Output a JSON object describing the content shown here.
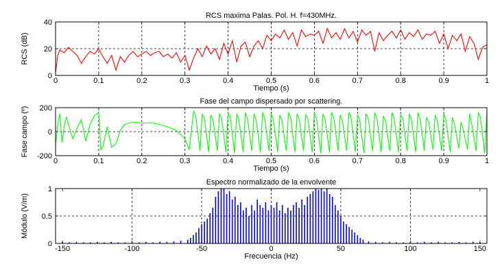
{
  "chart_data": [
    {
      "type": "line",
      "title": "RCS maxima Palas. Pol. H. f=430MHz.",
      "xlabel": "Tiempo (s)",
      "ylabel": "RCS (dB)",
      "xlim": [
        0,
        1
      ],
      "ylim": [
        0,
        40
      ],
      "xticks": [
        0,
        0.1,
        0.2,
        0.3,
        0.4,
        0.5,
        0.6,
        0.7,
        0.8,
        0.9,
        1
      ],
      "xtick_labels": [
        "0",
        "0.1",
        "0.2",
        "0.3",
        "0.4",
        "0.5",
        "0.6",
        "0.7",
        "0.8",
        "0.9",
        "1"
      ],
      "yticks": [
        0,
        20,
        40
      ],
      "ytick_labels": [
        "0",
        "20",
        "40"
      ],
      "grid": true,
      "color": "#ff0000",
      "series": [
        {
          "x": [
            0,
            0.005,
            0.01,
            0.02,
            0.03,
            0.04,
            0.05,
            0.06,
            0.07,
            0.08,
            0.09,
            0.1,
            0.11,
            0.12,
            0.13,
            0.14,
            0.15,
            0.16,
            0.17,
            0.18,
            0.19,
            0.2,
            0.21,
            0.22,
            0.23,
            0.24,
            0.25,
            0.26,
            0.27,
            0.28,
            0.29,
            0.3,
            0.31,
            0.32,
            0.33,
            0.34,
            0.35,
            0.36,
            0.37,
            0.38,
            0.39,
            0.4,
            0.41,
            0.42,
            0.43,
            0.44,
            0.45,
            0.46,
            0.47,
            0.48,
            0.49,
            0.5,
            0.51,
            0.52,
            0.53,
            0.54,
            0.55,
            0.56,
            0.57,
            0.58,
            0.59,
            0.6,
            0.61,
            0.62,
            0.63,
            0.64,
            0.65,
            0.66,
            0.67,
            0.68,
            0.69,
            0.7,
            0.71,
            0.72,
            0.73,
            0.74,
            0.75,
            0.76,
            0.77,
            0.78,
            0.79,
            0.8,
            0.81,
            0.82,
            0.83,
            0.84,
            0.85,
            0.86,
            0.87,
            0.88,
            0.89,
            0.9,
            0.91,
            0.92,
            0.93,
            0.94,
            0.95,
            0.96,
            0.97,
            0.98,
            0.99,
            1
          ],
          "y": [
            2,
            15,
            19,
            17,
            21,
            18,
            15,
            9,
            14,
            18,
            16,
            20,
            14,
            9,
            15,
            4,
            14,
            10,
            15,
            18,
            14,
            16,
            18,
            15,
            17,
            18,
            14,
            16,
            13,
            17,
            10,
            15,
            4,
            13,
            20,
            14,
            22,
            16,
            20,
            12,
            24,
            16,
            26,
            10,
            22,
            25,
            14,
            22,
            26,
            20,
            30,
            26,
            31,
            28,
            34,
            27,
            32,
            22,
            34,
            29,
            31,
            30,
            33,
            24,
            35,
            28,
            32,
            27,
            35,
            28,
            33,
            25,
            34,
            30,
            33,
            18,
            32,
            26,
            30,
            33,
            28,
            34,
            27,
            32,
            29,
            34,
            27,
            31,
            30,
            33,
            24,
            31,
            20,
            30,
            26,
            31,
            18,
            29,
            24,
            12,
            21,
            23
          ]
        }
      ]
    },
    {
      "type": "line",
      "title": "Fase del campo dispersado por scattering.",
      "xlabel": "Tiempo (s)",
      "ylabel": "Fase campo (º)",
      "xlim": [
        0,
        1
      ],
      "ylim": [
        -200,
        200
      ],
      "xticks": [
        0,
        0.1,
        0.2,
        0.3,
        0.4,
        0.5,
        0.6,
        0.7,
        0.8,
        0.9,
        1
      ],
      "xtick_labels": [
        "0",
        "0.1",
        "0.2",
        "0.3",
        "0.4",
        "0.5",
        "0.6",
        "0.7",
        "0.8",
        "0.9",
        "1"
      ],
      "yticks": [
        -200,
        0,
        200
      ],
      "ytick_labels": [
        "-200",
        "0",
        "200"
      ],
      "grid": true,
      "color": "#00ff00",
      "series": [
        {
          "x": [
            0,
            0.005,
            0.01,
            0.015,
            0.02,
            0.025,
            0.04,
            0.05,
            0.06,
            0.07,
            0.08,
            0.09,
            0.1,
            0.105,
            0.11,
            0.12,
            0.13,
            0.14,
            0.15,
            0.16,
            0.18,
            0.2,
            0.22,
            0.24,
            0.26,
            0.28,
            0.3,
            0.31,
            0.32,
            0.325,
            0.335,
            0.34,
            0.345,
            0.355,
            0.36,
            0.365,
            0.375,
            0.38,
            0.385,
            0.395,
            0.4,
            0.405,
            0.415,
            0.42,
            0.425,
            0.435,
            0.44,
            0.445,
            0.455,
            0.46,
            0.465,
            0.475,
            0.48,
            0.485,
            0.495,
            0.5,
            0.505,
            0.515,
            0.52,
            0.525,
            0.535,
            0.54,
            0.545,
            0.555,
            0.56,
            0.565,
            0.575,
            0.58,
            0.585,
            0.595,
            0.6,
            0.605,
            0.615,
            0.62,
            0.625,
            0.635,
            0.64,
            0.645,
            0.655,
            0.66,
            0.665,
            0.675,
            0.68,
            0.685,
            0.695,
            0.7,
            0.705,
            0.715,
            0.72,
            0.725,
            0.735,
            0.74,
            0.745,
            0.755,
            0.76,
            0.765,
            0.775,
            0.78,
            0.785,
            0.795,
            0.8,
            0.805,
            0.815,
            0.82,
            0.825,
            0.835,
            0.84,
            0.845,
            0.855,
            0.86,
            0.865,
            0.875,
            0.88,
            0.885,
            0.895,
            0.9,
            0.905,
            0.915,
            0.92,
            0.925,
            0.935,
            0.94,
            0.945,
            0.955,
            0.96,
            0.965,
            0.975,
            0.98,
            0.985,
            0.995,
            1
          ],
          "y": [
            -120,
            60,
            150,
            -90,
            40,
            120,
            -60,
            30,
            100,
            -80,
            60,
            130,
            160,
            -150,
            -120,
            40,
            -130,
            -100,
            10,
            60,
            80,
            70,
            75,
            60,
            40,
            10,
            -60,
            -150,
            170,
            130,
            -160,
            150,
            110,
            -170,
            140,
            100,
            -160,
            150,
            110,
            -170,
            160,
            120,
            -180,
            150,
            100,
            -170,
            160,
            110,
            -160,
            150,
            100,
            -170,
            160,
            110,
            -160,
            150,
            100,
            -170,
            140,
            90,
            -160,
            160,
            120,
            -170,
            150,
            100,
            -160,
            140,
            110,
            -170,
            160,
            110,
            -180,
            150,
            100,
            -170,
            160,
            120,
            -160,
            140,
            90,
            -160,
            160,
            120,
            -170,
            140,
            100,
            -180,
            150,
            110,
            -160,
            160,
            110,
            -170,
            130,
            90,
            -160,
            160,
            110,
            -170,
            140,
            110,
            -160,
            150,
            100,
            -170,
            160,
            110,
            -160,
            120,
            80,
            -150,
            140,
            90,
            -160,
            150,
            100,
            -170,
            120,
            60,
            -140,
            80,
            20,
            -150,
            150,
            60,
            -160,
            160,
            120,
            -180,
            160
          ]
        }
      ]
    },
    {
      "type": "bar",
      "title": "Espectro normalizado de la envolvente",
      "xlabel": "Frecuencia (Hz)",
      "ylabel": "Módulo (V/m)",
      "xlim": [
        -155,
        155
      ],
      "ylim": [
        0,
        1
      ],
      "xticks": [
        -150,
        -100,
        -50,
        0,
        50,
        100,
        150
      ],
      "xtick_labels": [
        "-150",
        "-100",
        "-50",
        "0",
        "50",
        "100",
        "150"
      ],
      "yticks": [
        0,
        0.5,
        1
      ],
      "ytick_labels": [
        "0",
        "0.5",
        "1"
      ],
      "grid": true,
      "color": "#0000ff",
      "series": [
        {
          "x": [
            -150,
            -145,
            -140,
            -135,
            -130,
            -125,
            -120,
            -115,
            -110,
            -105,
            -100,
            -95,
            -90,
            -85,
            -80,
            -75,
            -70,
            -65,
            -60,
            -58,
            -56,
            -54,
            -52,
            -50,
            -48,
            -46,
            -44,
            -42,
            -40,
            -38,
            -36,
            -34,
            -32,
            -30,
            -28,
            -26,
            -24,
            -22,
            -20,
            -18,
            -16,
            -14,
            -12,
            -10,
            -8,
            -6,
            -4,
            -2,
            0,
            2,
            4,
            6,
            8,
            10,
            12,
            14,
            16,
            18,
            20,
            22,
            24,
            26,
            28,
            30,
            32,
            34,
            36,
            38,
            40,
            42,
            44,
            46,
            48,
            50,
            52,
            54,
            56,
            58,
            60,
            62,
            64,
            66,
            70,
            75,
            80,
            85,
            90,
            95,
            100,
            105,
            110,
            115,
            120,
            125,
            130,
            135,
            140,
            145,
            150
          ],
          "y": [
            0.03,
            0.02,
            0.03,
            0.02,
            0.02,
            0.03,
            0.02,
            0.03,
            0.02,
            0.02,
            0.03,
            0.02,
            0.03,
            0.02,
            0.03,
            0.03,
            0.04,
            0.05,
            0.07,
            0.1,
            0.15,
            0.2,
            0.28,
            0.35,
            0.4,
            0.45,
            0.55,
            0.65,
            0.85,
            0.95,
            1.0,
            1.0,
            0.9,
            0.95,
            0.8,
            0.85,
            0.7,
            0.75,
            0.6,
            0.65,
            0.5,
            0.7,
            0.6,
            0.8,
            0.7,
            0.65,
            0.75,
            0.6,
            0.7,
            0.65,
            0.75,
            0.6,
            0.7,
            0.55,
            0.65,
            0.6,
            0.7,
            0.75,
            0.65,
            0.8,
            0.7,
            0.85,
            0.9,
            0.95,
            1.0,
            0.98,
            1.0,
            0.95,
            1.0,
            0.9,
            0.85,
            0.7,
            0.6,
            0.5,
            0.4,
            0.35,
            0.3,
            0.25,
            0.2,
            0.15,
            0.1,
            0.07,
            0.04,
            0.03,
            0.02,
            0.03,
            0.02,
            0.02,
            0.03,
            0.02,
            0.03,
            0.02,
            0.03,
            0.02,
            0.02,
            0.03,
            0.02,
            0.03,
            0.02
          ]
        }
      ]
    }
  ]
}
